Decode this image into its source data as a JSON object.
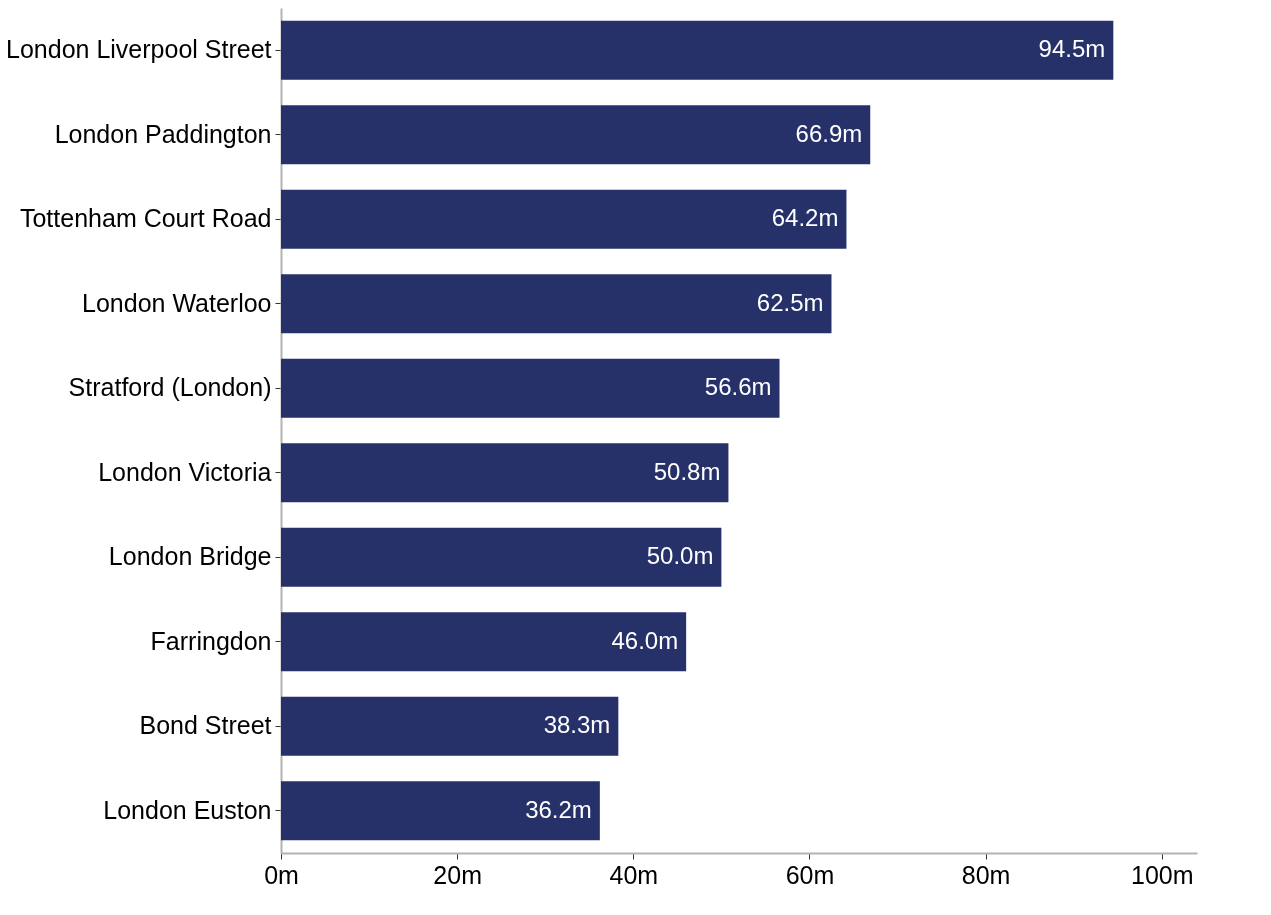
{
  "chart_data": {
    "type": "bar",
    "orientation": "horizontal",
    "categories": [
      "London Liverpool Street",
      "London Paddington",
      "Tottenham Court Road",
      "London Waterloo",
      "Stratford (London)",
      "London Victoria",
      "London Bridge",
      "Farringdon",
      "Bond Street",
      "London Euston"
    ],
    "values": [
      94.5,
      66.9,
      64.2,
      62.5,
      56.6,
      50.8,
      50.0,
      46.0,
      38.3,
      36.2
    ],
    "value_labels": [
      "94.5m",
      "66.9m",
      "64.2m",
      "62.5m",
      "56.6m",
      "50.8m",
      "50.0m",
      "46.0m",
      "38.3m",
      "36.2m"
    ],
    "color": "#26316a",
    "xlim": [
      0,
      104
    ],
    "xticks": [
      {
        "value": 0,
        "label": "0m"
      },
      {
        "value": 20,
        "label": "20m"
      },
      {
        "value": 40,
        "label": "40m"
      },
      {
        "value": 60,
        "label": "60m"
      },
      {
        "value": 80,
        "label": "80m"
      },
      {
        "value": 100,
        "label": "100m"
      }
    ],
    "grid": false
  }
}
